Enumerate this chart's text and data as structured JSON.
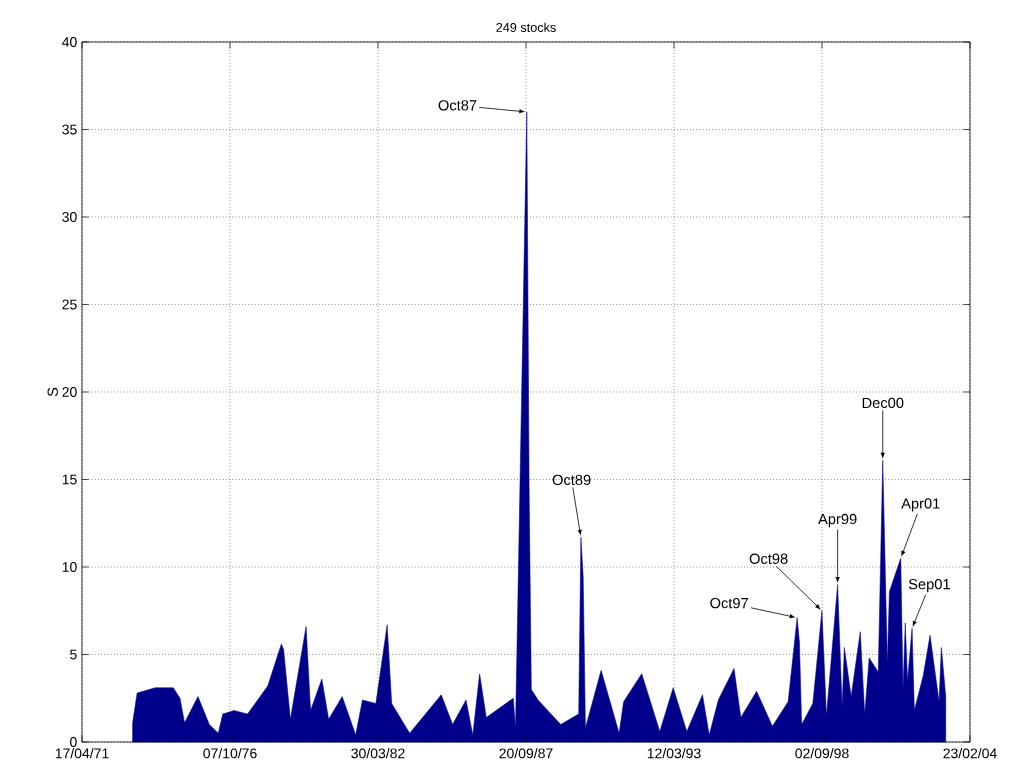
{
  "chart_data": {
    "type": "area",
    "title": "249 stocks",
    "ylabel": "S",
    "color": "#00008b",
    "x": [
      "1973-03",
      "1973-05",
      "1974-01",
      "1974-06",
      "1974-09",
      "1974-12",
      "1975-02",
      "1975-08",
      "1976-01",
      "1976-05",
      "1976-07",
      "1976-12",
      "1977-06",
      "1978-03",
      "1978-09",
      "1978-10",
      "1979-01",
      "1979-08",
      "1979-10",
      "1980-03",
      "1980-06",
      "1980-12",
      "1981-06",
      "1981-09",
      "1982-03",
      "1982-08",
      "1982-10",
      "1983-06",
      "1984-08",
      "1985-01",
      "1985-07",
      "1985-10",
      "1986-01",
      "1986-04",
      "1987-04",
      "1987-05",
      "1987-10",
      "1987-11",
      "1987-12",
      "1988-03",
      "1989-01",
      "1989-09",
      "1989-10",
      "1989-11",
      "1989-12",
      "1990-07",
      "1991-03",
      "1991-05",
      "1992-01",
      "1992-09",
      "1993-03",
      "1993-09",
      "1994-04",
      "1994-07",
      "1994-11",
      "1995-06",
      "1995-09",
      "1996-04",
      "1996-11",
      "1997-06",
      "1997-10",
      "1997-11",
      "1997-12",
      "1998-05",
      "1998-09",
      "1998-11",
      "1999-04",
      "1999-06",
      "1999-07",
      "1999-10",
      "2000-02",
      "2000-04",
      "2000-06",
      "2000-10",
      "2000-12",
      "2001-02",
      "2001-03",
      "2001-08",
      "2001-09",
      "2001-10",
      "2001-11",
      "2002-01",
      "2002-02",
      "2002-06",
      "2002-09",
      "2003-01",
      "2003-02",
      "2003-04"
    ],
    "values": [
      1.1,
      2.8,
      3.1,
      3.1,
      3.1,
      2.5,
      1.1,
      2.6,
      1.0,
      0.5,
      1.6,
      1.8,
      1.6,
      3.2,
      5.6,
      5.3,
      1.3,
      6.6,
      1.8,
      3.6,
      1.3,
      2.6,
      0.4,
      2.4,
      2.2,
      6.7,
      2.2,
      0.5,
      2.7,
      1.0,
      2.4,
      0.4,
      3.9,
      1.4,
      2.5,
      0.8,
      36.0,
      14.5,
      3.0,
      2.4,
      1.0,
      1.6,
      11.7,
      9.4,
      0.8,
      4.1,
      0.5,
      2.3,
      3.9,
      0.6,
      3.1,
      0.6,
      2.7,
      0.4,
      2.4,
      4.2,
      1.4,
      2.9,
      0.9,
      2.3,
      7.1,
      5.7,
      1.0,
      2.2,
      7.5,
      1.5,
      9.0,
      2.0,
      5.4,
      2.6,
      6.3,
      1.6,
      4.8,
      4.0,
      16.1,
      4.5,
      8.6,
      10.5,
      3.0,
      6.8,
      3.5,
      6.5,
      1.8,
      3.8,
      6.1,
      2.3,
      5.4,
      2.6
    ],
    "xlim": [
      "1971-04-17",
      "2004-02-23"
    ],
    "xticks": [
      {
        "value": "1971-04-17",
        "label": "17/04/71"
      },
      {
        "value": "1976-10-07",
        "label": "07/10/76"
      },
      {
        "value": "1982-03-30",
        "label": "30/03/82"
      },
      {
        "value": "1987-09-20",
        "label": "20/09/87"
      },
      {
        "value": "1993-03-12",
        "label": "12/03/93"
      },
      {
        "value": "1998-09-02",
        "label": "02/09/98"
      },
      {
        "value": "2004-02-23",
        "label": "23/02/04"
      }
    ],
    "ylim": [
      0,
      40
    ],
    "yticks": [
      0,
      5,
      10,
      15,
      20,
      25,
      30,
      35,
      40
    ],
    "grid": true,
    "annotations": [
      {
        "text": "Oct87",
        "x": "1987-10",
        "y": 36.0
      },
      {
        "text": "Oct89",
        "x": "1989-10",
        "y": 11.7
      },
      {
        "text": "Oct97",
        "x": "1997-10",
        "y": 7.1
      },
      {
        "text": "Oct98",
        "x": "1998-09",
        "y": 7.5
      },
      {
        "text": "Apr99",
        "x": "1999-04",
        "y": 9.0
      },
      {
        "text": "Dec00",
        "x": "2000-12",
        "y": 16.1
      },
      {
        "text": "Apr01",
        "x": "2001-08",
        "y": 10.5
      },
      {
        "text": "Sep01",
        "x": "2002-01",
        "y": 6.5
      }
    ]
  }
}
